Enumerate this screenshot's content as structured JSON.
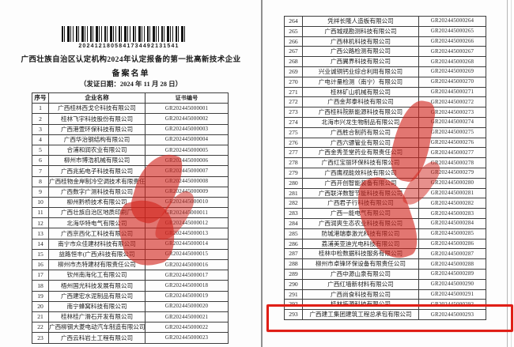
{
  "document": {
    "barcode_number": "2024121805841734492131541",
    "title_line1": "广西壮族自治区认定机构2024年认定报备的第一批高新技术企业",
    "title_line2": "备案名单",
    "issue_date": "（发证日期：2024 年 11 月 28 日）"
  },
  "table": {
    "headers": {
      "no": "序号",
      "name": "企业名称",
      "cert": "证书编号"
    }
  },
  "left_rows": [
    {
      "no": "1",
      "name": "广西桂林西戈仑科技有限公司",
      "cert": "GR202445000001"
    },
    {
      "no": "2",
      "name": "桂林飞宇科技股份有限公司",
      "cert": "GR202445000002"
    },
    {
      "no": "3",
      "name": "广西港萱环保科技有限公司",
      "cert": "GR202445000003"
    },
    {
      "no": "4",
      "name": "广西华治钢结构有限公司",
      "cert": "GR202445000004"
    },
    {
      "no": "5",
      "name": "合浦和润农业有限公司",
      "cert": "GR202445000005"
    },
    {
      "no": "6",
      "name": "柳州市博浩机械有限公司",
      "cert": "GR202445000006"
    },
    {
      "no": "7",
      "name": "广西兆拓电子科技有限公司",
      "cert": "GR202445000007"
    },
    {
      "no": "8",
      "name": "广西桂物金岸制冷空调技术有限责任公司",
      "cert": "GR202445000008"
    },
    {
      "no": "9",
      "name": "广西数字广测科技有限公司",
      "cert": "GR202445000009"
    },
    {
      "no": "10",
      "name": "柳州黔桥技术有限公司",
      "cert": "GR202445000010"
    },
    {
      "no": "11",
      "name": "广西壮族自治区地质印刷厂",
      "cert": "GR202445000011"
    },
    {
      "no": "12",
      "name": "北海华特电气有限公司",
      "cert": "GR202445000012"
    },
    {
      "no": "13",
      "name": "广西京西化工科技有限公司",
      "cert": "GR202445000013"
    },
    {
      "no": "14",
      "name": "南宁市众佳建材科技有限公司",
      "cert": "GR202445000014"
    },
    {
      "no": "15",
      "name": "益路恒丰(广西)科技有限公司",
      "cert": "GR202445000015"
    },
    {
      "no": "16",
      "name": "柳州市杰特建材有限责任公司",
      "cert": "GR202445000016"
    },
    {
      "no": "17",
      "name": "钦州南海化工有限公司",
      "cert": "GR202445000017"
    },
    {
      "no": "18",
      "name": "梧州国光科技发展有限公司",
      "cert": "GR202445000018"
    },
    {
      "no": "19",
      "name": "广西建宏水泥制品有限公司",
      "cert": "GR202445000019"
    },
    {
      "no": "20",
      "name": "南宁蜂窝科技有限公司",
      "cert": "GR202445000020"
    },
    {
      "no": "21",
      "name": "桂林桂广滑石开发有限公司",
      "cert": "GR202445000021"
    },
    {
      "no": "22",
      "name": "广西柳钢大菱电动汽车制造有限公司",
      "cert": "GR202445000022"
    },
    {
      "no": "23",
      "name": "广西云科岩土工程有限公司",
      "cert": "GR202445000023"
    }
  ],
  "right_rows": [
    {
      "no": "264",
      "name": "凭祥长隆人造板有限公司",
      "cert": "GR202445000264"
    },
    {
      "no": "265",
      "name": "广西城规勘测科技有限公司",
      "cert": "GR202445000265"
    },
    {
      "no": "266",
      "name": "广西林机科技有限公司",
      "cert": "GR202445000266"
    },
    {
      "no": "267",
      "name": "广西公路检测有限公司",
      "cert": "GR202445000267"
    },
    {
      "no": "268",
      "name": "广西翼界科技有限公司",
      "cert": "GR202445000268"
    },
    {
      "no": "269",
      "name": "兴业诚铜钙业综合利用有限公司",
      "cert": "GR202445000269"
    },
    {
      "no": "270",
      "name": "广电计量检测（南宁）有限公司",
      "cert": "GR202445000270"
    },
    {
      "no": "271",
      "name": "桂林矿山机械有限公司",
      "cert": "GR202445000271"
    },
    {
      "no": "272",
      "name": "广西金邦泰科技有限公司",
      "cert": "GR202445000272"
    },
    {
      "no": "273",
      "name": "广西桂科院新能源科技有限公司",
      "cert": "GR202445000273"
    },
    {
      "no": "274",
      "name": "北海市兴龙生物制品有限公司",
      "cert": "GR202445000274"
    },
    {
      "no": "275",
      "name": "广西胜合制药有限公司",
      "cert": "GR202445000275"
    },
    {
      "no": "276",
      "name": "广西六骠管业有限公司",
      "cert": "GR202445000276"
    },
    {
      "no": "277",
      "name": "广西金秀圣堂药业有限责任公司",
      "cert": "GR202445000277"
    },
    {
      "no": "278",
      "name": "广西红宝丽环保科技有限公司",
      "cert": "GR202445000278"
    },
    {
      "no": "279",
      "name": "广西鹰视能效科技有限公司",
      "cert": "GR202445000279"
    },
    {
      "no": "280",
      "name": "广西开创智能装备有限公司",
      "cert": "GR202445000280"
    },
    {
      "no": "281",
      "name": "广西联洋数智节能科技有限公司",
      "cert": "GR202445000281"
    },
    {
      "no": "282",
      "name": "广西君子行科技有限公司",
      "cert": "GR202445000282"
    },
    {
      "no": "283",
      "name": "广西一能电气有限公司",
      "cert": "GR202445000283"
    },
    {
      "no": "284",
      "name": "广西润爽生态农业科技有限公司",
      "cert": "GR202445000284"
    },
    {
      "no": "285",
      "name": "防城港瑞泰激光科技有限公司",
      "cert": "GR202445000285"
    },
    {
      "no": "286",
      "name": "荔浦美亚迪光电科技有限公司",
      "cert": "GR202445000286"
    },
    {
      "no": "287",
      "name": "桂林中检数据科技服务有限公司",
      "cert": "GR202445000287"
    },
    {
      "no": "288",
      "name": "柳州市卓锋环保设备有限责任公司",
      "cert": "GR202445000288"
    },
    {
      "no": "289",
      "name": "广西中源山泉有限公司",
      "cert": "GR202445000289"
    },
    {
      "no": "290",
      "name": "广西红墙新材料有限公司",
      "cert": "GR202445000290"
    },
    {
      "no": "291",
      "name": "广西尚食科技有限公司",
      "cert": "GR202445000291"
    },
    {
      "no": "292",
      "name": "桂林拓源科技有限公司",
      "cert": "GR202445000292"
    },
    {
      "no": "293",
      "name": "广西建工集团建筑工程总承包有限公司",
      "cert": "GR202445000293"
    }
  ],
  "highlight": {
    "row_no": "293",
    "color": "#e01f17"
  },
  "colors": {
    "stamp_red": "#d2231c",
    "table_border": "#3d3d3d"
  }
}
